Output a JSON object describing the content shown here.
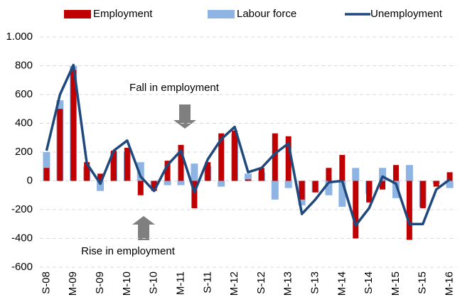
{
  "chart_data": {
    "type": "bar",
    "categories": [
      "S-08",
      null,
      "M-09",
      null,
      "S-09",
      null,
      "M-10",
      null,
      "S-10",
      null,
      "M-11",
      null,
      "S-11",
      null,
      "M-12",
      null,
      "S-12",
      null,
      "M-13",
      null,
      "S-13",
      null,
      "M-14",
      null,
      "S-14",
      null,
      "M-15",
      null,
      "S-15",
      null,
      "M-16"
    ],
    "series": [
      {
        "name": "Labour force",
        "color": "#8db4e2",
        "type": "bar",
        "values": [
          200,
          560,
          800,
          100,
          -70,
          200,
          200,
          130,
          -50,
          -30,
          -30,
          120,
          100,
          -40,
          330,
          50,
          60,
          -130,
          -50,
          -170,
          -80,
          -100,
          -180,
          90,
          -90,
          90,
          -120,
          110,
          -180,
          -20,
          -50
        ]
      },
      {
        "name": "Employment",
        "color": "#c00000",
        "type": "bar",
        "values": [
          90,
          500,
          770,
          130,
          50,
          210,
          230,
          -100,
          -70,
          140,
          250,
          -190,
          130,
          330,
          350,
          10,
          90,
          330,
          310,
          -130,
          -80,
          90,
          180,
          -400,
          -150,
          -60,
          110,
          -410,
          -190,
          -40,
          60
        ]
      },
      {
        "name": "Unemployment",
        "color": "#1f497d",
        "type": "line",
        "values": [
          210,
          600,
          805,
          120,
          -20,
          210,
          280,
          30,
          -70,
          110,
          210,
          -80,
          150,
          290,
          375,
          60,
          90,
          190,
          260,
          -230,
          -130,
          -10,
          0,
          -310,
          -190,
          30,
          -20,
          -300,
          -300,
          -60,
          10
        ]
      }
    ],
    "annotations": [
      "Fall in employment",
      "Rise in employment"
    ],
    "ylim": [
      -600,
      1000
    ],
    "yticks": [
      -600,
      -400,
      -200,
      0,
      200,
      400,
      600,
      800,
      {
        "value": 1000,
        "label": "1.000"
      }
    ],
    "grid": true
  }
}
